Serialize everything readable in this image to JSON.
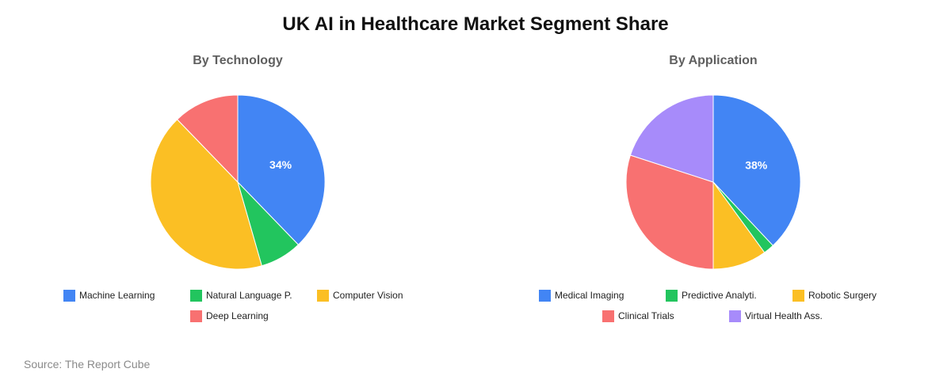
{
  "title": "UK AI in Healthcare Market Segment Share",
  "source": "Source: The Report Cube",
  "chart_data": [
    {
      "type": "pie",
      "title": "By Technology",
      "categories": [
        "Machine Learning",
        "Natural Language P.",
        "Computer Vision",
        "Deep Learning"
      ],
      "values": [
        34,
        7,
        38,
        11
      ],
      "colors": [
        "#4285f4",
        "#22c55e",
        "#fbbf24",
        "#f87171"
      ],
      "data_labels": [
        "34%",
        "",
        "",
        ""
      ],
      "legend": "bottom"
    },
    {
      "type": "pie",
      "title": "By Application",
      "categories": [
        "Medical Imaging",
        "Predictive Analyti.",
        "Robotic Surgery",
        "Clinical Trials",
        "Virtual Health Ass."
      ],
      "values": [
        38,
        2,
        10,
        30,
        20
      ],
      "colors": [
        "#4285f4",
        "#22c55e",
        "#fbbf24",
        "#f87171",
        "#a78bfa"
      ],
      "data_labels": [
        "38%",
        "",
        "",
        "",
        ""
      ],
      "legend": "bottom"
    }
  ]
}
